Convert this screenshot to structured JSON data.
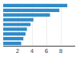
{
  "chart_data": {
    "type": "bar",
    "orientation": "horizontal",
    "categories": [
      null,
      null,
      null,
      null,
      null,
      null,
      null,
      null,
      null
    ],
    "values": [
      8.9,
      7.8,
      6.5,
      4.2,
      3.8,
      3.3,
      3.1,
      2.8,
      2.5
    ],
    "color": "#2e8bc8",
    "xlim": [
      0,
      10.0
    ],
    "xticks": [
      2,
      4,
      6,
      8
    ],
    "grid": true,
    "tick_labels": "x"
  }
}
